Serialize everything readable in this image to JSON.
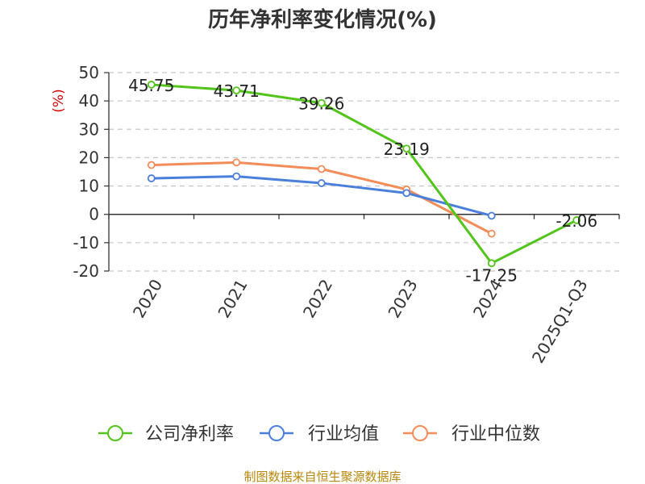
{
  "chart_data": {
    "type": "line",
    "title": "历年净利率变化情况(%)",
    "ylabel": "(%)",
    "xlabel": "",
    "categories": [
      "2020",
      "2021",
      "2022",
      "2023",
      "2024",
      "2025Q1-Q3"
    ],
    "ylim": [
      -20,
      50
    ],
    "yticks": [
      50,
      40,
      30,
      20,
      10,
      0,
      -10,
      -20
    ],
    "grid": "horizontal dashed",
    "legend_position": "bottom",
    "series": [
      {
        "name": "公司净利率",
        "color": "#52c41a",
        "values": [
          45.75,
          43.71,
          39.26,
          23.19,
          -17.25,
          -2.06
        ],
        "labels": [
          "45.75",
          "43.71",
          "39.26",
          "23.19",
          "-17.25",
          "-2.06"
        ]
      },
      {
        "name": "行业均值",
        "color": "#4a7fdb",
        "values": [
          12.7,
          13.4,
          11.0,
          7.5,
          -0.5,
          null
        ]
      },
      {
        "name": "行业中位数",
        "color": "#f48c5a",
        "values": [
          17.4,
          18.3,
          16.0,
          8.8,
          -6.8,
          null
        ]
      }
    ]
  },
  "source_note": "制图数据来自恒生聚源数据库"
}
